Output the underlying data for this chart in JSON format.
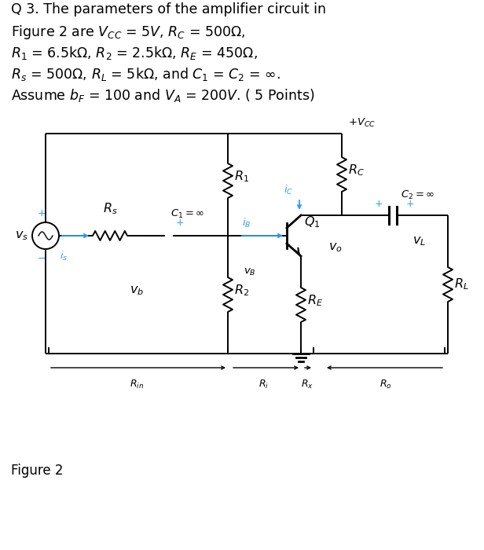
{
  "title_lines": [
    "Q 3. The parameters of the amplifier circuit in",
    "Figure 2 are $V_{CC}$ = 5$V$, $R_C$ = 500Ω,",
    "$R_1$ = 6.5kΩ, $R_2$ = 2.5kΩ, $R_E$ = 450Ω,",
    "$R_s$ = 500Ω, $R_L$ = 5kΩ, and $C_1$ = $C_2$ = ∞.",
    "Assume $b_F$ = 100 and $V_A$ = 200$V$. ( 5 Points)"
  ],
  "figure_label": "Figure 2",
  "bg_color": "#ffffff",
  "line_color": "#000000",
  "blue_color": "#3399FF",
  "text_color": "#000000"
}
